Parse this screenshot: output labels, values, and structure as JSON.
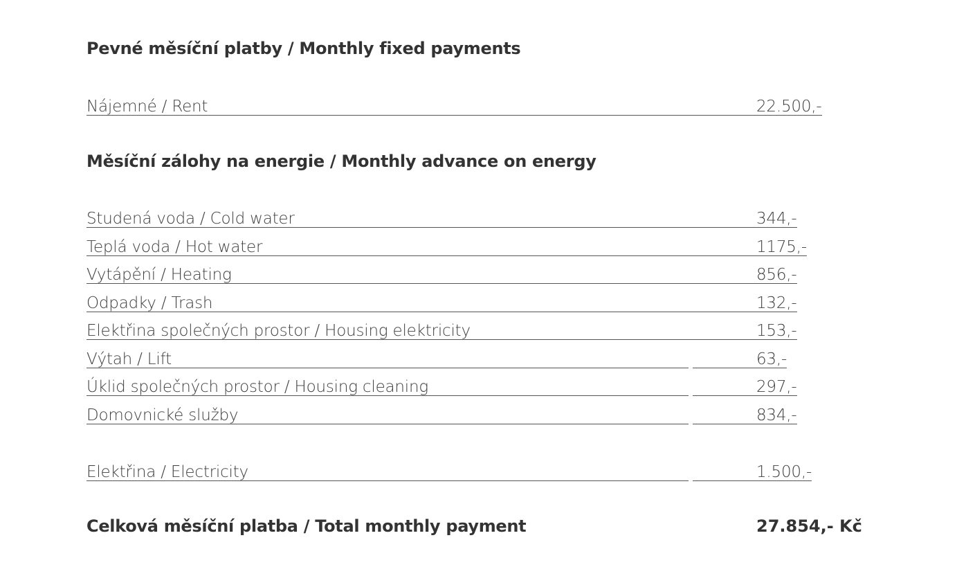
{
  "sections": [
    {
      "heading": "Pevné měsíční platby / Monthly fixed payments",
      "rows": [
        {
          "label": "Nájemné / Rent",
          "value": "22.500,-"
        }
      ]
    },
    {
      "heading": "Měsíční zálohy na energie / Monthly advance on energy",
      "rows": [
        {
          "label": "Studená voda / Cold water",
          "value": "344,-"
        },
        {
          "label": "Teplá voda / Hot water",
          "value": "1175,-"
        },
        {
          "label": "Vytápění / Heating",
          "value": "856,-"
        },
        {
          "label": "Odpadky / Trash",
          "value": "132,-"
        },
        {
          "label": "Elektřina společných prostor / Housing elektricity",
          "value": "153,-"
        },
        {
          "label": "Výtah / Lift",
          "value": "63,-"
        },
        {
          "label": "Úklid společných prostor / Housing cleaning",
          "value": "297,-"
        },
        {
          "label": "Domovnické služby",
          "value": "834,-"
        },
        {
          "label": "Elektřina / Electricity",
          "value": "1.500,-"
        }
      ]
    }
  ],
  "total": {
    "label": "Celková měsíční platba / Total monthly payment",
    "value": "27.854,- Kč"
  }
}
